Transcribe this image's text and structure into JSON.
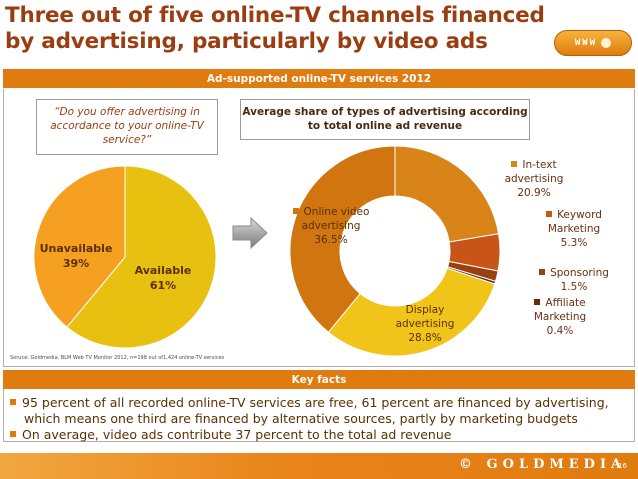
{
  "title": "Three out of five online-TV channels financed by advertising, particularly by video ads",
  "badge_text": "WWW",
  "section_main": "Ad-supported online-TV services 2012",
  "question": "“Do you offer advertising in accordance  to your online-TV service?”",
  "donut_title": "Average share of types of advertising according to total online ad revenue",
  "source": "Soruce: Goldmedia, BLM Web TV Monitor 2012, n=198 out of1,424 online-TV services",
  "section_facts": "Key facts",
  "facts": [
    "95 percent of all recorded online-TV services are free, 61 percent are financed by advertising,",
    "which means one third are financed by alternative sources, partly by marketing budgets",
    "On average, video ads contribute 37 percent to the total ad revenue"
  ],
  "brand": "© GOLDMEDIA",
  "page_number": "16",
  "colors": {
    "title": "#9a3d10",
    "accent": "#e07b10",
    "available": "#e8c010",
    "unavailable": "#f5a020",
    "online_video": "#d07510",
    "in_text": "#d88418",
    "keyword": "#c85418",
    "sponsoring": "#9a4010",
    "affiliate": "#6a2a08",
    "display": "#f0c418"
  },
  "chart_data": [
    {
      "type": "pie",
      "title": "“Do you offer advertising in accordance  to your online-TV service?”",
      "categories": [
        "Available",
        "Unavailable"
      ],
      "values": [
        61,
        39
      ],
      "labels": [
        "61%",
        "39%"
      ]
    },
    {
      "type": "pie",
      "subtype": "donut",
      "title": "Average share of types of advertising according to total online ad revenue",
      "categories": [
        "In-text advertising",
        "Keyword Marketing",
        "Sponsoring",
        "Affiliate Marketing",
        "Display advertising",
        "Online video advertising"
      ],
      "values": [
        20.9,
        5.3,
        1.5,
        0.4,
        28.8,
        36.5
      ],
      "labels": [
        "20.9%",
        "5.3%",
        "1.5%",
        "0.4%",
        "28.8%",
        "36.5%"
      ]
    }
  ],
  "legend": {
    "in_text": [
      "In-text",
      "advertising",
      "20.9%"
    ],
    "keyword": [
      "Keyword",
      "Marketing",
      "5.3%"
    ],
    "sponsoring": [
      "Sponsoring",
      "1.5%"
    ],
    "affiliate": [
      "Affiliate",
      "Marketing",
      "0.4%"
    ],
    "display": [
      "Display",
      "advertising",
      "28.8%"
    ],
    "video": [
      "Online video",
      "advertising",
      "36.5%"
    ]
  },
  "pie_labels": {
    "available": [
      "Available",
      "61%"
    ],
    "unavailable": [
      "Unavailable",
      "39%"
    ]
  }
}
